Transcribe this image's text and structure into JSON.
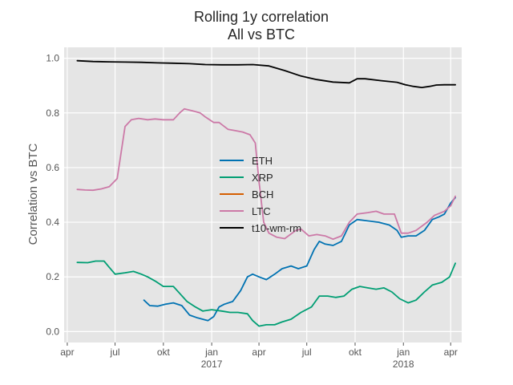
{
  "chart_data": {
    "type": "line",
    "title": "Rolling 1y correlation",
    "subtitle": "All vs BTC",
    "ylabel": "Correlation vs BTC",
    "xlabel": "",
    "ylim": [
      -0.04,
      1.04
    ],
    "xlim": [
      "2016-03-26",
      "2018-04-22"
    ],
    "grid": true,
    "legend_position": "center",
    "y_ticks": [
      0.0,
      0.2,
      0.4,
      0.6,
      0.8,
      1.0
    ],
    "y_tick_labels": [
      "0.0",
      "0.2",
      "0.4",
      "0.6",
      "0.8",
      "1.0"
    ],
    "x_ticks": [
      {
        "date": "2016-04-01",
        "label": "apr",
        "year_label": ""
      },
      {
        "date": "2016-07-01",
        "label": "jul",
        "year_label": ""
      },
      {
        "date": "2016-10-01",
        "label": "okt",
        "year_label": ""
      },
      {
        "date": "2017-01-01",
        "label": "jan",
        "year_label": "2017"
      },
      {
        "date": "2017-04-01",
        "label": "apr",
        "year_label": ""
      },
      {
        "date": "2017-07-01",
        "label": "jul",
        "year_label": ""
      },
      {
        "date": "2017-10-01",
        "label": "okt",
        "year_label": ""
      },
      {
        "date": "2018-01-01",
        "label": "jan",
        "year_label": "2018"
      },
      {
        "date": "2018-04-01",
        "label": "apr",
        "year_label": ""
      }
    ],
    "series": [
      {
        "name": "ETH",
        "color": "#0072b2",
        "points": [
          [
            "2016-08-25",
            0.115
          ],
          [
            "2016-09-05",
            0.095
          ],
          [
            "2016-09-20",
            0.093
          ],
          [
            "2016-10-05",
            0.1
          ],
          [
            "2016-10-20",
            0.105
          ],
          [
            "2016-11-05",
            0.095
          ],
          [
            "2016-11-20",
            0.06
          ],
          [
            "2016-12-05",
            0.05
          ],
          [
            "2016-12-25",
            0.04
          ],
          [
            "2017-01-05",
            0.055
          ],
          [
            "2017-01-15",
            0.09
          ],
          [
            "2017-01-25",
            0.1
          ],
          [
            "2017-02-10",
            0.11
          ],
          [
            "2017-02-25",
            0.15
          ],
          [
            "2017-03-10",
            0.2
          ],
          [
            "2017-03-20",
            0.21
          ],
          [
            "2017-04-01",
            0.2
          ],
          [
            "2017-04-15",
            0.19
          ],
          [
            "2017-05-01",
            0.21
          ],
          [
            "2017-05-15",
            0.23
          ],
          [
            "2017-06-01",
            0.24
          ],
          [
            "2017-06-15",
            0.23
          ],
          [
            "2017-07-01",
            0.24
          ],
          [
            "2017-07-15",
            0.3
          ],
          [
            "2017-07-25",
            0.33
          ],
          [
            "2017-08-05",
            0.32
          ],
          [
            "2017-08-20",
            0.315
          ],
          [
            "2017-09-05",
            0.33
          ],
          [
            "2017-09-20",
            0.39
          ],
          [
            "2017-10-05",
            0.41
          ],
          [
            "2017-10-25",
            0.405
          ],
          [
            "2017-11-15",
            0.4
          ],
          [
            "2017-12-05",
            0.39
          ],
          [
            "2017-12-20",
            0.37
          ],
          [
            "2017-12-28",
            0.345
          ],
          [
            "2018-01-10",
            0.35
          ],
          [
            "2018-01-25",
            0.35
          ],
          [
            "2018-02-10",
            0.37
          ],
          [
            "2018-02-25",
            0.41
          ],
          [
            "2018-03-10",
            0.42
          ],
          [
            "2018-03-20",
            0.43
          ],
          [
            "2018-04-01",
            0.47
          ],
          [
            "2018-04-10",
            0.49
          ]
        ]
      },
      {
        "name": "XRP",
        "color": "#009e73",
        "points": [
          [
            "2016-04-20",
            0.253
          ],
          [
            "2016-05-10",
            0.252
          ],
          [
            "2016-05-25",
            0.258
          ],
          [
            "2016-06-10",
            0.258
          ],
          [
            "2016-06-20",
            0.235
          ],
          [
            "2016-07-01",
            0.21
          ],
          [
            "2016-07-20",
            0.215
          ],
          [
            "2016-08-05",
            0.22
          ],
          [
            "2016-08-20",
            0.21
          ],
          [
            "2016-09-01",
            0.2
          ],
          [
            "2016-09-15",
            0.185
          ],
          [
            "2016-10-01",
            0.165
          ],
          [
            "2016-10-20",
            0.165
          ],
          [
            "2016-11-01",
            0.14
          ],
          [
            "2016-11-15",
            0.11
          ],
          [
            "2016-12-01",
            0.09
          ],
          [
            "2016-12-15",
            0.075
          ],
          [
            "2017-01-01",
            0.08
          ],
          [
            "2017-01-20",
            0.075
          ],
          [
            "2017-02-05",
            0.07
          ],
          [
            "2017-02-20",
            0.07
          ],
          [
            "2017-03-10",
            0.065
          ],
          [
            "2017-03-20",
            0.04
          ],
          [
            "2017-04-01",
            0.02
          ],
          [
            "2017-04-15",
            0.025
          ],
          [
            "2017-05-01",
            0.025
          ],
          [
            "2017-05-15",
            0.035
          ],
          [
            "2017-06-01",
            0.045
          ],
          [
            "2017-06-20",
            0.07
          ],
          [
            "2017-07-10",
            0.09
          ],
          [
            "2017-07-25",
            0.13
          ],
          [
            "2017-08-10",
            0.13
          ],
          [
            "2017-08-25",
            0.125
          ],
          [
            "2017-09-10",
            0.13
          ],
          [
            "2017-09-25",
            0.155
          ],
          [
            "2017-10-10",
            0.165
          ],
          [
            "2017-10-25",
            0.16
          ],
          [
            "2017-11-10",
            0.155
          ],
          [
            "2017-11-25",
            0.16
          ],
          [
            "2017-12-10",
            0.145
          ],
          [
            "2017-12-25",
            0.12
          ],
          [
            "2018-01-10",
            0.105
          ],
          [
            "2018-01-25",
            0.115
          ],
          [
            "2018-02-10",
            0.145
          ],
          [
            "2018-02-25",
            0.17
          ],
          [
            "2018-03-15",
            0.18
          ],
          [
            "2018-03-30",
            0.2
          ],
          [
            "2018-04-10",
            0.25
          ]
        ]
      },
      {
        "name": "BCH",
        "color": "#d55e00",
        "points": []
      },
      {
        "name": "LTC",
        "color": "#cc79a7",
        "points": [
          [
            "2016-04-20",
            0.52
          ],
          [
            "2016-05-05",
            0.518
          ],
          [
            "2016-05-20",
            0.517
          ],
          [
            "2016-06-05",
            0.522
          ],
          [
            "2016-06-20",
            0.53
          ],
          [
            "2016-07-05",
            0.56
          ],
          [
            "2016-07-20",
            0.75
          ],
          [
            "2016-08-01",
            0.775
          ],
          [
            "2016-08-15",
            0.78
          ],
          [
            "2016-09-01",
            0.775
          ],
          [
            "2016-09-15",
            0.778
          ],
          [
            "2016-10-01",
            0.775
          ],
          [
            "2016-10-20",
            0.775
          ],
          [
            "2016-11-01",
            0.8
          ],
          [
            "2016-11-10",
            0.815
          ],
          [
            "2016-11-25",
            0.808
          ],
          [
            "2016-12-10",
            0.8
          ],
          [
            "2016-12-20",
            0.785
          ],
          [
            "2017-01-05",
            0.765
          ],
          [
            "2017-01-15",
            0.765
          ],
          [
            "2017-02-01",
            0.74
          ],
          [
            "2017-02-15",
            0.735
          ],
          [
            "2017-03-01",
            0.73
          ],
          [
            "2017-03-15",
            0.72
          ],
          [
            "2017-03-25",
            0.69
          ],
          [
            "2017-04-01",
            0.55
          ],
          [
            "2017-04-10",
            0.4
          ],
          [
            "2017-04-20",
            0.36
          ],
          [
            "2017-05-05",
            0.345
          ],
          [
            "2017-05-20",
            0.34
          ],
          [
            "2017-06-10",
            0.37
          ],
          [
            "2017-06-20",
            0.375
          ],
          [
            "2017-07-05",
            0.35
          ],
          [
            "2017-07-20",
            0.355
          ],
          [
            "2017-08-05",
            0.35
          ],
          [
            "2017-08-20",
            0.338
          ],
          [
            "2017-09-05",
            0.35
          ],
          [
            "2017-09-20",
            0.4
          ],
          [
            "2017-10-05",
            0.43
          ],
          [
            "2017-10-25",
            0.435
          ],
          [
            "2017-11-10",
            0.44
          ],
          [
            "2017-11-25",
            0.43
          ],
          [
            "2017-12-15",
            0.43
          ],
          [
            "2017-12-28",
            0.36
          ],
          [
            "2018-01-10",
            0.36
          ],
          [
            "2018-01-25",
            0.37
          ],
          [
            "2018-02-15",
            0.4
          ],
          [
            "2018-03-01",
            0.425
          ],
          [
            "2018-03-20",
            0.44
          ],
          [
            "2018-04-01",
            0.46
          ],
          [
            "2018-04-10",
            0.495
          ]
        ]
      },
      {
        "name": "t10-wm-rm",
        "color": "#000000",
        "points": [
          [
            "2016-04-20",
            0.991
          ],
          [
            "2016-05-20",
            0.988
          ],
          [
            "2016-06-20",
            0.987
          ],
          [
            "2016-07-20",
            0.986
          ],
          [
            "2016-08-20",
            0.985
          ],
          [
            "2016-09-20",
            0.983
          ],
          [
            "2016-10-20",
            0.982
          ],
          [
            "2016-11-20",
            0.98
          ],
          [
            "2016-12-20",
            0.977
          ],
          [
            "2017-01-20",
            0.976
          ],
          [
            "2017-02-20",
            0.976
          ],
          [
            "2017-03-20",
            0.977
          ],
          [
            "2017-04-20",
            0.972
          ],
          [
            "2017-05-20",
            0.955
          ],
          [
            "2017-06-20",
            0.935
          ],
          [
            "2017-07-20",
            0.922
          ],
          [
            "2017-08-20",
            0.913
          ],
          [
            "2017-09-20",
            0.91
          ],
          [
            "2017-10-05",
            0.925
          ],
          [
            "2017-10-20",
            0.925
          ],
          [
            "2017-11-20",
            0.918
          ],
          [
            "2017-12-20",
            0.912
          ],
          [
            "2018-01-05",
            0.903
          ],
          [
            "2018-01-20",
            0.897
          ],
          [
            "2018-02-05",
            0.893
          ],
          [
            "2018-02-20",
            0.897
          ],
          [
            "2018-03-05",
            0.902
          ],
          [
            "2018-03-20",
            0.903
          ],
          [
            "2018-04-10",
            0.903
          ]
        ]
      }
    ]
  }
}
